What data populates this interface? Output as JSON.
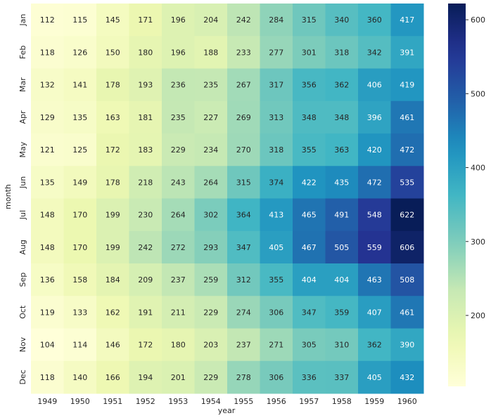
{
  "chart_data": {
    "type": "heatmap",
    "xlabel": "year",
    "ylabel": "month",
    "x_categories": [
      "1949",
      "1950",
      "1951",
      "1952",
      "1953",
      "1954",
      "1955",
      "1956",
      "1957",
      "1958",
      "1959",
      "1960"
    ],
    "y_categories": [
      "Jan",
      "Feb",
      "Mar",
      "Apr",
      "May",
      "Jun",
      "Jul",
      "Aug",
      "Sep",
      "Oct",
      "Nov",
      "Dec"
    ],
    "values": [
      [
        112,
        115,
        145,
        171,
        196,
        204,
        242,
        284,
        315,
        340,
        360,
        417
      ],
      [
        118,
        126,
        150,
        180,
        196,
        188,
        233,
        277,
        301,
        318,
        342,
        391
      ],
      [
        132,
        141,
        178,
        193,
        236,
        235,
        267,
        317,
        356,
        362,
        406,
        419
      ],
      [
        129,
        135,
        163,
        181,
        235,
        227,
        269,
        313,
        348,
        348,
        396,
        461
      ],
      [
        121,
        125,
        172,
        183,
        229,
        234,
        270,
        318,
        355,
        363,
        420,
        472
      ],
      [
        135,
        149,
        178,
        218,
        243,
        264,
        315,
        374,
        422,
        435,
        472,
        535
      ],
      [
        148,
        170,
        199,
        230,
        264,
        302,
        364,
        413,
        465,
        491,
        548,
        622
      ],
      [
        148,
        170,
        199,
        242,
        272,
        293,
        347,
        405,
        467,
        505,
        559,
        606
      ],
      [
        136,
        158,
        184,
        209,
        237,
        259,
        312,
        355,
        404,
        404,
        463,
        508
      ],
      [
        119,
        133,
        162,
        191,
        211,
        229,
        274,
        306,
        347,
        359,
        407,
        461
      ],
      [
        104,
        114,
        146,
        172,
        180,
        203,
        237,
        271,
        305,
        310,
        362,
        390
      ],
      [
        118,
        140,
        166,
        194,
        201,
        229,
        278,
        306,
        336,
        337,
        405,
        432
      ]
    ],
    "colormap": "YlGnBu",
    "vmin": 104,
    "vmax": 622,
    "colorbar_ticks": [
      200,
      300,
      400,
      500,
      600
    ]
  }
}
